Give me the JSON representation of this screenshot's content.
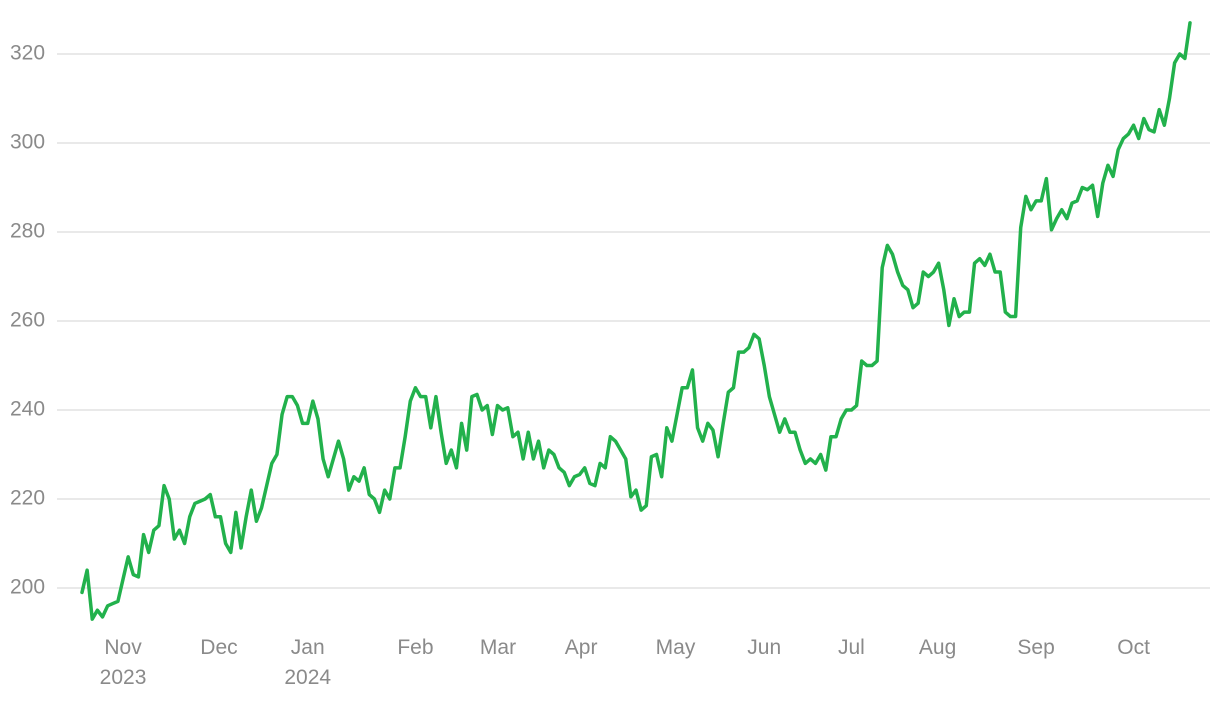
{
  "chart_data": {
    "type": "line",
    "series": [
      {
        "color": "#22b14c",
        "values": [
          199,
          204,
          193,
          195,
          193.5,
          196,
          196.5,
          197,
          202,
          207,
          203,
          202.5,
          212,
          208,
          213,
          214,
          223,
          220,
          211,
          213,
          210,
          216,
          219,
          219.5,
          220,
          221,
          216,
          216,
          210,
          208,
          217,
          209,
          216,
          222,
          215,
          218,
          223,
          228,
          230,
          239,
          243,
          243,
          241,
          237,
          237,
          242,
          238,
          229,
          225,
          229,
          233,
          229,
          222,
          225,
          224,
          227,
          221,
          220,
          217,
          222,
          220,
          227,
          227,
          234,
          242,
          245,
          243,
          243,
          236,
          243,
          235,
          228,
          231,
          227,
          237,
          231,
          243,
          243.5,
          240,
          241,
          234.5,
          241,
          240,
          240.5,
          234,
          235,
          229,
          235,
          229,
          233,
          227,
          231,
          230,
          227,
          226,
          223,
          225,
          225.5,
          227,
          223.5,
          223,
          228,
          227,
          234,
          233,
          231,
          229,
          220.5,
          222,
          217.5,
          218.5,
          229.5,
          230,
          225,
          236,
          233,
          239,
          245,
          245,
          249,
          236,
          233,
          237,
          235.5,
          229.5,
          237,
          244,
          245,
          253,
          253,
          254,
          257,
          256,
          250,
          243,
          239,
          235,
          238,
          235,
          235,
          231,
          228,
          229,
          228,
          230,
          226.5,
          234,
          234,
          238,
          240,
          240,
          241,
          251,
          250,
          250,
          251,
          272,
          277,
          275,
          271,
          268,
          267,
          263,
          264,
          271,
          270,
          271,
          273,
          267,
          259,
          265,
          261,
          262,
          262,
          273,
          274,
          272.5,
          275,
          271,
          271,
          262,
          261,
          261,
          281,
          288,
          285,
          287,
          287,
          292,
          280.5,
          283,
          285,
          283,
          286.5,
          287,
          290,
          289.5,
          290.5,
          283.5,
          291,
          295,
          292.5,
          298.5,
          301,
          302,
          304,
          301,
          305.5,
          303,
          302.5,
          307.5,
          304,
          310,
          318,
          320,
          319,
          327
        ]
      }
    ],
    "xlim": [
      0,
      216
    ],
    "xticks": [
      {
        "value": 8,
        "label": "Nov 2023"
      },
      {
        "value": 26.7,
        "label": "Dec"
      },
      {
        "value": 44,
        "label": "Jan 2024"
      },
      {
        "value": 65,
        "label": "Feb"
      },
      {
        "value": 81.1,
        "label": "Mar"
      },
      {
        "value": 97.3,
        "label": "Apr"
      },
      {
        "value": 115.7,
        "label": "May"
      },
      {
        "value": 133,
        "label": "Jun"
      },
      {
        "value": 150,
        "label": "Jul"
      },
      {
        "value": 166.8,
        "label": "Aug"
      },
      {
        "value": 186,
        "label": "Sep"
      },
      {
        "value": 205,
        "label": "Oct"
      }
    ],
    "ylim": [
      190,
      332
    ],
    "yticks": [
      200,
      220,
      240,
      260,
      280,
      300,
      320
    ],
    "grid": true
  }
}
